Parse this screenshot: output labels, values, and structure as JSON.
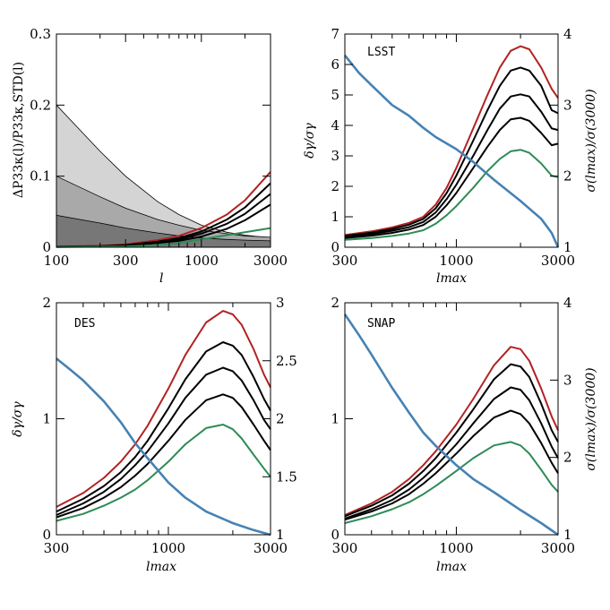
{
  "chart_data": [
    {
      "id": "p1",
      "type": "line",
      "xscale": "log",
      "xlim": [
        100,
        3000
      ],
      "ylim": [
        0,
        0.3
      ],
      "xticks": [
        100,
        300,
        1000,
        3000
      ],
      "xtick_labels": [
        "100",
        "300",
        "1000",
        "3000"
      ],
      "yticks": [
        0,
        0.1,
        0.2,
        0.3
      ],
      "ytick_labels": [
        "0",
        "0.1",
        "0.2",
        "0.3"
      ],
      "xlabel": "l",
      "ylabel": "ΔP33κ(l)/P33κ,STD(l)",
      "bands": [
        {
          "color": "#d4d4d4",
          "x": [
            100,
            200,
            300,
            500,
            700,
            1000,
            1500,
            2000,
            3000
          ],
          "values": [
            0.2,
            0.135,
            0.1,
            0.064,
            0.046,
            0.031,
            0.021,
            0.017,
            0.013
          ]
        },
        {
          "color": "#a9a9a9",
          "x": [
            100,
            200,
            300,
            500,
            700,
            1000,
            1500,
            2000,
            3000
          ],
          "values": [
            0.1,
            0.071,
            0.055,
            0.039,
            0.031,
            0.024,
            0.019,
            0.016,
            0.014
          ]
        },
        {
          "color": "#777777",
          "x": [
            100,
            200,
            300,
            500,
            700,
            1000,
            1500,
            2000,
            3000
          ],
          "values": [
            0.045,
            0.034,
            0.027,
            0.02,
            0.016,
            0.013,
            0.011,
            0.01,
            0.009
          ]
        }
      ],
      "series": [
        {
          "color": "#b22222",
          "x": [
            100,
            200,
            300,
            500,
            700,
            1000,
            1500,
            2000,
            3000
          ],
          "values": [
            0.001,
            0.002,
            0.004,
            0.01,
            0.016,
            0.027,
            0.046,
            0.066,
            0.106
          ]
        },
        {
          "color": "#000000",
          "x": [
            100,
            200,
            300,
            500,
            700,
            1000,
            1500,
            2000,
            3000
          ],
          "values": [
            0.0008,
            0.0017,
            0.003,
            0.008,
            0.013,
            0.022,
            0.039,
            0.056,
            0.09
          ]
        },
        {
          "color": "#000000",
          "x": [
            100,
            200,
            300,
            500,
            700,
            1000,
            1500,
            2000,
            3000
          ],
          "values": [
            0.0006,
            0.0014,
            0.0026,
            0.007,
            0.011,
            0.019,
            0.033,
            0.047,
            0.075
          ]
        },
        {
          "color": "#000000",
          "x": [
            100,
            200,
            300,
            500,
            700,
            1000,
            1500,
            2000,
            3000
          ],
          "values": [
            0.0005,
            0.0011,
            0.002,
            0.006,
            0.009,
            0.015,
            0.026,
            0.038,
            0.06
          ]
        },
        {
          "color": "#2e8b57",
          "x": [
            100,
            300,
            500,
            700,
            1000,
            1500,
            2000,
            3000
          ],
          "values": [
            0.0002,
            0.001,
            0.003,
            0.006,
            0.011,
            0.017,
            0.021,
            0.027
          ]
        }
      ]
    },
    {
      "id": "p2",
      "type": "line",
      "label": "LSST",
      "xscale": "log",
      "xlim": [
        300,
        3000
      ],
      "ylim": [
        0,
        7
      ],
      "y2lim": [
        1,
        4
      ],
      "xticks": [
        300,
        1000,
        3000
      ],
      "xtick_labels": [
        "300",
        "1000",
        "3000"
      ],
      "yticks": [
        0,
        1,
        2,
        3,
        4,
        5,
        6,
        7
      ],
      "ytick_labels": [
        "0",
        "1",
        "2",
        "3",
        "4",
        "5",
        "6",
        "7"
      ],
      "y2ticks": [
        1,
        2,
        3,
        4
      ],
      "y2tick_labels": [
        "1",
        "2",
        "3",
        "4"
      ],
      "xlabel": "lmax",
      "ylabel": "δγ/σγ",
      "y2label": "σ(lmax)/σ(3000)",
      "series": [
        {
          "color": "#b22222",
          "x": [
            300,
            400,
            500,
            600,
            700,
            800,
            900,
            1000,
            1200,
            1400,
            1600,
            1800,
            2000,
            2200,
            2500,
            2800,
            3000
          ],
          "values": [
            0.4,
            0.52,
            0.65,
            0.8,
            1.0,
            1.4,
            1.95,
            2.6,
            3.9,
            5.0,
            5.9,
            6.45,
            6.6,
            6.5,
            5.9,
            5.2,
            4.9
          ]
        },
        {
          "color": "#000000",
          "x": [
            300,
            400,
            500,
            600,
            700,
            800,
            900,
            1000,
            1200,
            1400,
            1600,
            1800,
            2000,
            2200,
            2500,
            2800,
            3000
          ],
          "values": [
            0.37,
            0.48,
            0.6,
            0.74,
            0.93,
            1.28,
            1.78,
            2.35,
            3.5,
            4.5,
            5.3,
            5.8,
            5.9,
            5.8,
            5.3,
            4.5,
            4.4
          ]
        },
        {
          "color": "#000000",
          "x": [
            300,
            400,
            500,
            600,
            700,
            800,
            900,
            1000,
            1200,
            1400,
            1600,
            1800,
            2000,
            2200,
            2500,
            2800,
            3000
          ],
          "values": [
            0.33,
            0.43,
            0.54,
            0.66,
            0.83,
            1.14,
            1.58,
            2.05,
            3.0,
            3.85,
            4.55,
            4.95,
            5.02,
            4.95,
            4.45,
            3.9,
            3.85
          ]
        },
        {
          "color": "#000000",
          "x": [
            300,
            400,
            500,
            600,
            700,
            800,
            900,
            1000,
            1200,
            1400,
            1600,
            1800,
            2000,
            2200,
            2500,
            2800,
            3000
          ],
          "values": [
            0.3,
            0.38,
            0.47,
            0.58,
            0.73,
            1.0,
            1.38,
            1.78,
            2.6,
            3.3,
            3.85,
            4.2,
            4.25,
            4.15,
            3.75,
            3.35,
            3.4
          ]
        },
        {
          "color": "#2e8b57",
          "x": [
            300,
            400,
            500,
            600,
            700,
            800,
            900,
            1000,
            1200,
            1400,
            1600,
            1800,
            2000,
            2200,
            2500,
            2800,
            3000
          ],
          "values": [
            0.24,
            0.3,
            0.37,
            0.45,
            0.56,
            0.77,
            1.05,
            1.35,
            1.95,
            2.5,
            2.9,
            3.15,
            3.2,
            3.1,
            2.75,
            2.35,
            2.3
          ]
        },
        {
          "color": "#4682b4",
          "axis": "y2",
          "x": [
            300,
            350,
            400,
            500,
            600,
            700,
            800,
            1000,
            1200,
            1500,
            2000,
            2500,
            2800,
            3000
          ],
          "values": [
            3.7,
            3.45,
            3.28,
            3.0,
            2.85,
            2.68,
            2.55,
            2.38,
            2.2,
            1.95,
            1.65,
            1.4,
            1.2,
            1.0
          ]
        }
      ]
    },
    {
      "id": "p3",
      "type": "line",
      "label": "DES",
      "xscale": "log",
      "xlim": [
        300,
        3000
      ],
      "ylim": [
        0,
        2
      ],
      "y2lim": [
        1,
        3
      ],
      "xticks": [
        300,
        1000,
        3000
      ],
      "xtick_labels": [
        "300",
        "1000",
        "3000"
      ],
      "yticks": [
        0,
        1,
        2
      ],
      "ytick_labels": [
        "0",
        "1",
        "2"
      ],
      "y2ticks": [
        1,
        1.5,
        2,
        2.5,
        3
      ],
      "y2tick_labels": [
        "1",
        "1.5",
        "2",
        "2.5",
        "3"
      ],
      "xlabel": "lmax",
      "ylabel": "δγ/σγ",
      "series": [
        {
          "color": "#b22222",
          "x": [
            300,
            400,
            500,
            600,
            700,
            800,
            1000,
            1200,
            1500,
            1800,
            2000,
            2200,
            2500,
            2800,
            3000
          ],
          "values": [
            0.24,
            0.36,
            0.49,
            0.63,
            0.78,
            0.94,
            1.26,
            1.55,
            1.83,
            1.93,
            1.9,
            1.81,
            1.6,
            1.38,
            1.27
          ]
        },
        {
          "color": "#000000",
          "x": [
            300,
            400,
            500,
            600,
            700,
            800,
            1000,
            1200,
            1500,
            1800,
            2000,
            2200,
            2500,
            2800,
            3000
          ],
          "values": [
            0.2,
            0.31,
            0.42,
            0.54,
            0.67,
            0.81,
            1.09,
            1.34,
            1.58,
            1.66,
            1.63,
            1.55,
            1.36,
            1.17,
            1.07
          ]
        },
        {
          "color": "#000000",
          "x": [
            300,
            400,
            500,
            600,
            700,
            800,
            1000,
            1200,
            1500,
            1800,
            2000,
            2200,
            2500,
            2800,
            3000
          ],
          "values": [
            0.17,
            0.27,
            0.37,
            0.48,
            0.6,
            0.72,
            0.96,
            1.18,
            1.38,
            1.44,
            1.41,
            1.33,
            1.16,
            0.99,
            0.91
          ]
        },
        {
          "color": "#000000",
          "x": [
            300,
            400,
            500,
            600,
            700,
            800,
            1000,
            1200,
            1500,
            1800,
            2000,
            2200,
            2500,
            2800,
            3000
          ],
          "values": [
            0.15,
            0.23,
            0.32,
            0.41,
            0.51,
            0.61,
            0.81,
            0.99,
            1.16,
            1.21,
            1.18,
            1.1,
            0.95,
            0.81,
            0.73
          ]
        },
        {
          "color": "#2e8b57",
          "x": [
            300,
            400,
            500,
            600,
            700,
            800,
            1000,
            1200,
            1500,
            1800,
            2000,
            2200,
            2500,
            2800,
            3000
          ],
          "values": [
            0.12,
            0.18,
            0.25,
            0.32,
            0.39,
            0.47,
            0.63,
            0.78,
            0.92,
            0.95,
            0.91,
            0.83,
            0.69,
            0.57,
            0.5
          ]
        },
        {
          "color": "#4682b4",
          "axis": "y2",
          "x": [
            300,
            350,
            400,
            500,
            600,
            700,
            800,
            1000,
            1200,
            1500,
            2000,
            2500,
            3000
          ],
          "values": [
            2.52,
            2.42,
            2.33,
            2.15,
            1.97,
            1.79,
            1.66,
            1.45,
            1.32,
            1.2,
            1.1,
            1.04,
            1.0
          ]
        }
      ]
    },
    {
      "id": "p4",
      "type": "line",
      "label": "SNAP",
      "xscale": "log",
      "xlim": [
        300,
        3000
      ],
      "ylim": [
        0,
        2
      ],
      "y2lim": [
        1,
        4
      ],
      "xticks": [
        300,
        1000,
        3000
      ],
      "xtick_labels": [
        "300",
        "1000",
        "3000"
      ],
      "yticks": [
        0,
        1,
        2
      ],
      "ytick_labels": [
        "0",
        "1",
        "2"
      ],
      "y2ticks": [
        1,
        2,
        3,
        4
      ],
      "y2tick_labels": [
        "1",
        "2",
        "3",
        "4"
      ],
      "xlabel": "lmax",
      "y2label": "σ(lmax)/σ(3000)",
      "series": [
        {
          "color": "#b22222",
          "x": [
            300,
            400,
            500,
            600,
            700,
            800,
            1000,
            1200,
            1500,
            1800,
            2000,
            2200,
            2500,
            2800,
            3000
          ],
          "values": [
            0.17,
            0.27,
            0.37,
            0.48,
            0.6,
            0.72,
            0.95,
            1.17,
            1.46,
            1.62,
            1.6,
            1.5,
            1.26,
            1.02,
            0.9
          ]
        },
        {
          "color": "#000000",
          "x": [
            300,
            400,
            500,
            600,
            700,
            800,
            1000,
            1200,
            1500,
            1800,
            2000,
            2200,
            2500,
            2800,
            3000
          ],
          "values": [
            0.16,
            0.25,
            0.34,
            0.44,
            0.55,
            0.66,
            0.88,
            1.08,
            1.34,
            1.47,
            1.45,
            1.36,
            1.13,
            0.9,
            0.8
          ]
        },
        {
          "color": "#000000",
          "x": [
            300,
            400,
            500,
            600,
            700,
            800,
            1000,
            1200,
            1500,
            1800,
            2000,
            2200,
            2500,
            2800,
            3000
          ],
          "values": [
            0.14,
            0.22,
            0.3,
            0.39,
            0.49,
            0.59,
            0.78,
            0.96,
            1.17,
            1.27,
            1.25,
            1.16,
            0.96,
            0.76,
            0.66
          ]
        },
        {
          "color": "#000000",
          "x": [
            300,
            400,
            500,
            600,
            700,
            800,
            1000,
            1200,
            1500,
            1800,
            2000,
            2200,
            2500,
            2800,
            3000
          ],
          "values": [
            0.13,
            0.2,
            0.27,
            0.35,
            0.44,
            0.53,
            0.7,
            0.85,
            1.01,
            1.07,
            1.04,
            0.96,
            0.79,
            0.62,
            0.53
          ]
        },
        {
          "color": "#2e8b57",
          "x": [
            300,
            400,
            500,
            600,
            700,
            800,
            1000,
            1200,
            1500,
            1800,
            2000,
            2200,
            2500,
            2800,
            3000
          ],
          "values": [
            0.1,
            0.16,
            0.22,
            0.28,
            0.35,
            0.42,
            0.55,
            0.66,
            0.77,
            0.8,
            0.77,
            0.7,
            0.56,
            0.43,
            0.37
          ]
        },
        {
          "color": "#4682b4",
          "axis": "y2",
          "x": [
            300,
            350,
            400,
            500,
            600,
            700,
            800,
            1000,
            1200,
            1500,
            2000,
            2500,
            3000
          ],
          "values": [
            3.85,
            3.58,
            3.33,
            2.9,
            2.58,
            2.32,
            2.15,
            1.9,
            1.72,
            1.55,
            1.32,
            1.15,
            1.0
          ]
        }
      ]
    }
  ]
}
